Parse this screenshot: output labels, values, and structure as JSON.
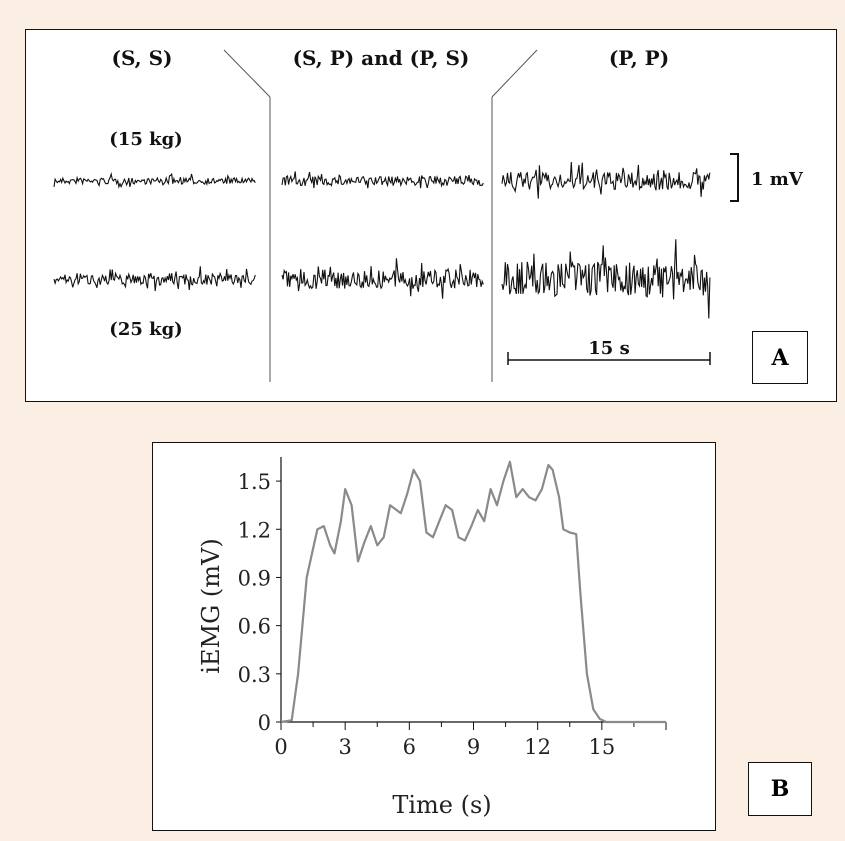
{
  "panel_a": {
    "label": "A",
    "conditions": [
      "(S, S)",
      "(S, P) and (P, S)",
      "(P, P)"
    ],
    "loads": [
      "(15 kg)",
      "(25 kg)"
    ],
    "voltage_scale": "1 mV",
    "time_scale": "15 s",
    "trace_amplitude_mv": [
      [
        0.3,
        0.45,
        0.85
      ],
      [
        0.55,
        0.95,
        1.7
      ]
    ]
  },
  "panel_b": {
    "label": "B"
  },
  "chart_data": {
    "type": "line",
    "title": "",
    "xlabel": "Time (s)",
    "ylabel": "iEMG (mV)",
    "xlim": [
      0,
      18
    ],
    "ylim": [
      0,
      1.65
    ],
    "xticks": [
      0,
      3,
      6,
      9,
      12,
      15
    ],
    "yticks": [
      0,
      0.3,
      0.6,
      0.9,
      1.2,
      1.5
    ],
    "ytick_labels": [
      "0",
      "0.3",
      "0.6",
      "0.9",
      "1.2",
      "1.5"
    ],
    "grid": false,
    "color": "#8a8a8a",
    "series": [
      {
        "x": [
          0,
          0.5,
          0.8,
          1.0,
          1.2,
          1.5,
          1.7,
          2.0,
          2.3,
          2.5,
          2.8,
          3.0,
          3.3,
          3.6,
          3.9,
          4.2,
          4.5,
          4.8,
          5.1,
          5.4,
          5.6,
          5.9,
          6.2,
          6.5,
          6.8,
          7.1,
          7.4,
          7.7,
          8.0,
          8.3,
          8.6,
          8.9,
          9.2,
          9.5,
          9.8,
          10.1,
          10.4,
          10.7,
          11.0,
          11.3,
          11.6,
          11.9,
          12.2,
          12.5,
          12.7,
          13.0,
          13.2,
          13.5,
          13.8,
          14.0,
          14.3,
          14.6,
          14.9,
          15.2,
          15.5,
          16.0,
          17.0,
          18.0
        ],
        "y": [
          0,
          0.01,
          0.3,
          0.6,
          0.9,
          1.08,
          1.2,
          1.22,
          1.1,
          1.05,
          1.25,
          1.45,
          1.35,
          1.0,
          1.12,
          1.22,
          1.1,
          1.15,
          1.35,
          1.32,
          1.3,
          1.42,
          1.57,
          1.5,
          1.18,
          1.15,
          1.25,
          1.35,
          1.32,
          1.15,
          1.13,
          1.22,
          1.32,
          1.25,
          1.45,
          1.35,
          1.5,
          1.62,
          1.4,
          1.45,
          1.4,
          1.38,
          1.45,
          1.6,
          1.57,
          1.4,
          1.2,
          1.18,
          1.17,
          0.8,
          0.3,
          0.08,
          0.02,
          0,
          0,
          0,
          0,
          0
        ]
      }
    ]
  }
}
